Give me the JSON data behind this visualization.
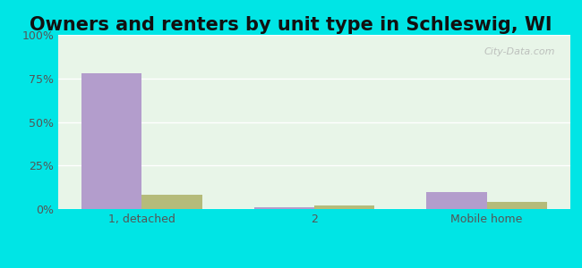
{
  "title": "Owners and renters by unit type in Schleswig, WI",
  "categories": [
    "1, detached",
    "2",
    "Mobile home"
  ],
  "owner_values": [
    78,
    1,
    10
  ],
  "renter_values": [
    8,
    2,
    4
  ],
  "owner_color": "#b39dcc",
  "renter_color": "#b5bb7a",
  "ylim": [
    0,
    100
  ],
  "yticks": [
    0,
    25,
    50,
    75,
    100
  ],
  "ytick_labels": [
    "0%",
    "25%",
    "50%",
    "75%",
    "100%"
  ],
  "title_fontsize": 15,
  "axis_bg_color_top": "#e8f5e8",
  "axis_bg_color_bottom": "#f0faf0",
  "outer_bg_color": "#00e5e5",
  "bar_width": 0.35,
  "watermark": "City-Data.com"
}
